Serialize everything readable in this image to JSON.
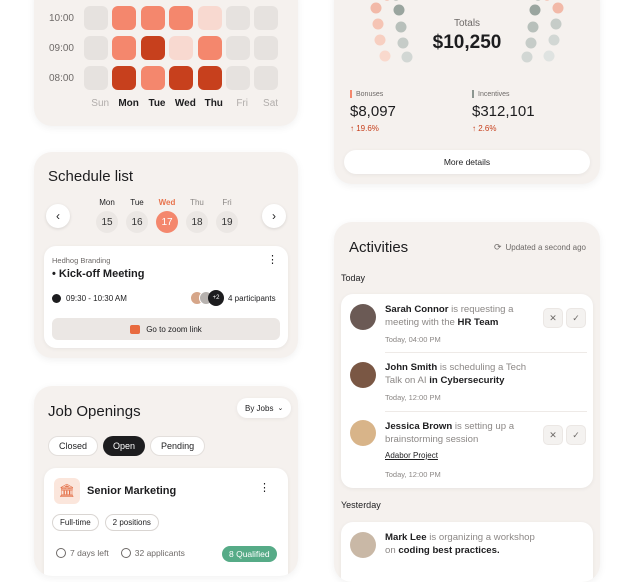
{
  "heatmap": {
    "times": [
      "10:00",
      "09:00",
      "08:00"
    ],
    "days": [
      "Sun",
      "Mon",
      "Tue",
      "Wed",
      "Thu",
      "Fri",
      "Sat"
    ],
    "active_days": [
      "Mon",
      "Tue",
      "Wed",
      "Thu"
    ],
    "colors": {
      "empty": "#e6e2df",
      "light": "#f8d9d0",
      "mid": "#f4876d",
      "dark": "#c7401d"
    },
    "rows": [
      [
        "empty",
        "mid",
        "mid",
        "mid",
        "light",
        "empty",
        "empty"
      ],
      [
        "empty",
        "mid",
        "dark",
        "light",
        "mid",
        "empty",
        "empty"
      ],
      [
        "empty",
        "dark",
        "mid",
        "dark",
        "dark",
        "empty",
        "empty"
      ]
    ]
  },
  "totals": {
    "label": "Totals",
    "value": "$10,250",
    "bonuses": {
      "label": "Bonuses",
      "value": "$8,097",
      "change": "19.6%",
      "color": "#f4876d"
    },
    "incentives": {
      "label": "Incentives",
      "value": "$312,101",
      "change": "2.6%",
      "color": "#8c9690"
    },
    "button": "More details"
  },
  "schedule": {
    "title": "Schedule list",
    "days": [
      {
        "name": "Mon",
        "num": "15"
      },
      {
        "name": "Tue",
        "num": "16"
      },
      {
        "name": "Wed",
        "num": "17"
      },
      {
        "name": "Thu",
        "num": "18"
      },
      {
        "name": "Fri",
        "num": "19"
      }
    ],
    "selected_index": 2,
    "event": {
      "org": "Hedhog Branding",
      "title": "• Kick-off Meeting",
      "time": "09:30 - 10:30 AM",
      "extra": "+2",
      "participants": "4 participants",
      "zoom": "Go to zoom link"
    }
  },
  "jobs": {
    "title": "Job Openings",
    "filter": "By Jobs",
    "tabs": [
      "Closed",
      "Open",
      "Pending"
    ],
    "active_tab": 1,
    "item": {
      "title": "Senior Marketing",
      "tags": [
        "Full-time",
        "2 positions"
      ],
      "days_left": "7 days left",
      "applicants": "32 applicants",
      "badge": "8 Qualified"
    }
  },
  "activities": {
    "title": "Activities",
    "updated": "Updated a second ago",
    "today": "Today",
    "yesterday": "Yesterday",
    "items": [
      {
        "name": "Sarah Connor",
        "pre": " is requesting a meeting with the ",
        "bold": "HR Team",
        "time": "Today, 04:00 PM"
      },
      {
        "name": "John Smith",
        "pre": " is scheduling a Tech Talk on AI ",
        "bold": "in Cybersecurity",
        "time": "Today, 12:00 PM"
      },
      {
        "name": "Jessica Brown",
        "pre": " is setting up a brainstorming session",
        "bold": "",
        "link": "Adabor Project",
        "time": "Today, 12:00 PM"
      },
      {
        "name": "Mark Lee",
        "pre": " is organizing a workshop on ",
        "bold": "coding best practices.",
        "time": ""
      }
    ]
  }
}
